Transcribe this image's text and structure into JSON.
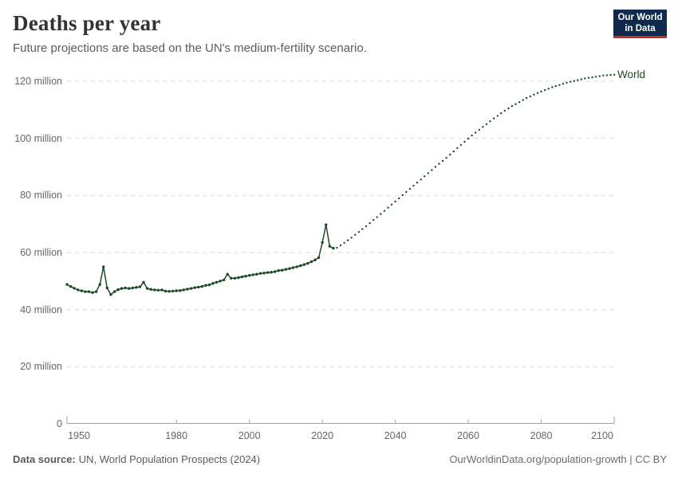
{
  "logo": {
    "line1": "Our World",
    "line2": "in Data"
  },
  "footer": {
    "source_label": "Data source:",
    "source_text": "UN, World Population Prospects (2024)",
    "credit": "OurWorldinData.org/population-growth | CC BY"
  },
  "colors": {
    "series_line": "#1d4a23",
    "grid": "#d9d9d9",
    "axis": "#a3a3a3",
    "tick_text": "#666666",
    "title_text": "#333333",
    "subtitle_text": "#5b5b5b",
    "logo_bg": "#102a4e",
    "logo_accent": "#c5302c"
  },
  "chart_data": {
    "type": "line",
    "title": "Deaths per year",
    "subtitle": "Future projections are based on the UN's medium-fertility scenario.",
    "entity_label": "World",
    "unit": "deaths per year (millions)",
    "grid": true,
    "legend_position": "inline-right-of-line-end",
    "x_axis": {
      "range": [
        1950,
        2100
      ],
      "ticks": [
        1950,
        1980,
        2000,
        2020,
        2040,
        2060,
        2080,
        2100
      ]
    },
    "y_axis": {
      "range_millions": [
        0,
        126
      ],
      "ticks": [
        {
          "value": 0,
          "label": "0"
        },
        {
          "value": 20,
          "label": "20 million"
        },
        {
          "value": 40,
          "label": "40 million"
        },
        {
          "value": 60,
          "label": "60 million"
        },
        {
          "value": 80,
          "label": "80 million"
        },
        {
          "value": 100,
          "label": "100 million"
        },
        {
          "value": 120,
          "label": "120 million"
        }
      ]
    },
    "series": [
      {
        "name": "World",
        "color": "#1d4a23",
        "historical": {
          "style": "solid line with yearly point markers",
          "start_year": 1950,
          "end_year": 2023,
          "step": 1,
          "values_millions": [
            48.8,
            48.1,
            47.5,
            46.9,
            46.6,
            46.3,
            46.3,
            46.0,
            46.3,
            48.8,
            55.0,
            47.6,
            45.3,
            46.3,
            47.0,
            47.4,
            47.6,
            47.4,
            47.6,
            47.8,
            48.0,
            49.6,
            47.4,
            47.1,
            46.9,
            46.8,
            46.9,
            46.5,
            46.4,
            46.5,
            46.6,
            46.7,
            46.9,
            47.2,
            47.4,
            47.7,
            47.9,
            48.1,
            48.5,
            48.7,
            49.2,
            49.6,
            50.0,
            50.4,
            52.4,
            51.0,
            51.0,
            51.2,
            51.5,
            51.7,
            52.0,
            52.2,
            52.4,
            52.7,
            52.8,
            53.0,
            53.1,
            53.3,
            53.7,
            53.8,
            54.1,
            54.4,
            54.7,
            55.0,
            55.4,
            55.8,
            56.2,
            56.8,
            57.4,
            58.2,
            63.5,
            69.7,
            62.2,
            61.5
          ]
        },
        "projection": {
          "style": "dotted (UN medium-fertility projection)",
          "start_year": 2024,
          "end_year": 2100,
          "step": 1,
          "values_millions": [
            61.7,
            62.5,
            63.4,
            64.3,
            65.2,
            66.2,
            67.2,
            68.2,
            69.2,
            70.3,
            71.4,
            72.4,
            73.5,
            74.6,
            75.7,
            76.8,
            77.9,
            79.0,
            80.1,
            81.2,
            82.3,
            83.4,
            84.5,
            85.6,
            86.7,
            87.8,
            88.9,
            90.0,
            91.1,
            92.1,
            93.2,
            94.3,
            95.4,
            96.6,
            97.7,
            98.8,
            99.9,
            101.0,
            102.0,
            103.0,
            104.0,
            105.0,
            106.0,
            107.0,
            107.9,
            108.8,
            109.7,
            110.5,
            111.3,
            112.0,
            112.7,
            113.4,
            114.1,
            114.7,
            115.3,
            115.9,
            116.4,
            116.9,
            117.4,
            117.9,
            118.3,
            118.7,
            119.1,
            119.5,
            119.8,
            120.1,
            120.4,
            120.7,
            121.0,
            121.2,
            121.4,
            121.6,
            121.8,
            122.0,
            122.1,
            122.2,
            122.3
          ]
        }
      }
    ],
    "annotations": [
      {
        "year": 1960,
        "value_millions": 55.0,
        "note": "spike in historical line"
      },
      {
        "year": 2021,
        "value_millions": 69.7,
        "note": "spike in historical line"
      }
    ]
  }
}
